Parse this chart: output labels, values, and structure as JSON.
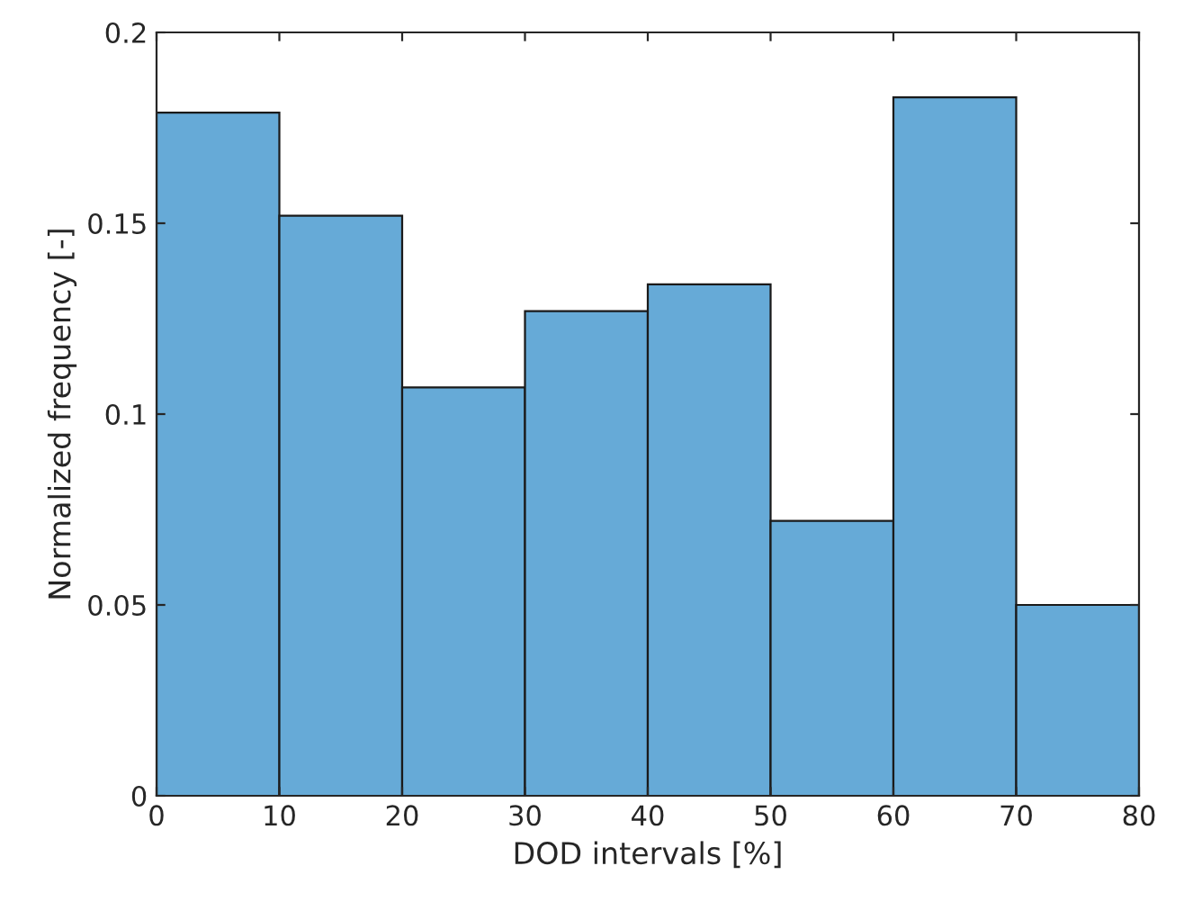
{
  "chart_data": {
    "type": "histogram",
    "xlabel": "DOD intervals [%]",
    "ylabel": "Normalized frequency [-]",
    "bins": [
      0,
      10,
      20,
      30,
      40,
      50,
      60,
      70,
      80
    ],
    "values": [
      0.179,
      0.152,
      0.107,
      0.127,
      0.134,
      0.072,
      0.183,
      0.05
    ],
    "color": "#66aad7",
    "xlim": [
      0,
      80
    ],
    "xticks": [
      0,
      10,
      20,
      30,
      40,
      50,
      60,
      70,
      80
    ],
    "ylim": [
      0,
      0.2
    ],
    "yticks": [
      0,
      0.05,
      0.1,
      0.15,
      0.2
    ],
    "grid": false,
    "legend": false
  }
}
